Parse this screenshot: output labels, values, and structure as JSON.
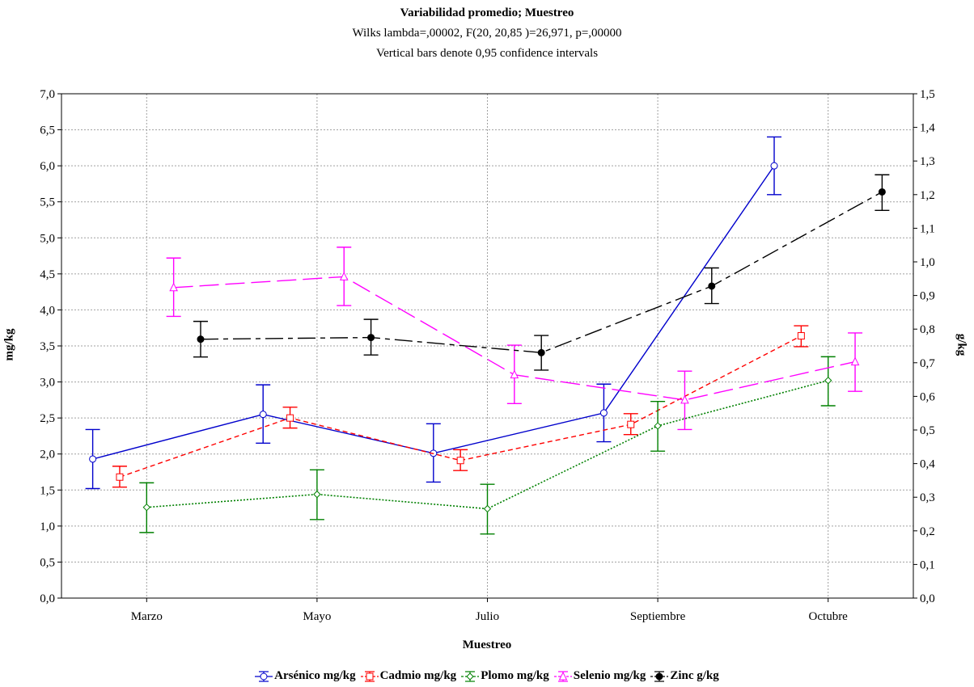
{
  "chart_data": {
    "type": "line",
    "title": "Variabilidad promedio; Muestreo",
    "subtitle": "Wilks lambda=,00002, F(20, 20,85 )=26,971, p=,00000",
    "note": "Vertical bars denote 0,95 confidence intervals",
    "xlabel": "Muestreo",
    "ylabel": "mg/kg",
    "y2label": "g/kg",
    "categories": [
      "Marzo",
      "Mayo",
      "Julio",
      "Septiembre",
      "Octubre"
    ],
    "ylim": [
      0,
      7
    ],
    "y_ticks": [
      "0,0",
      "0,5",
      "1,0",
      "1,5",
      "2,0",
      "2,5",
      "3,0",
      "3,5",
      "4,0",
      "4,5",
      "5,0",
      "5,5",
      "6,0",
      "6,5",
      "7,0"
    ],
    "y2lim": [
      0,
      1.5
    ],
    "y2_ticks": [
      "0,0",
      "0,1",
      "0,2",
      "0,3",
      "0,4",
      "0,5",
      "0,6",
      "0,7",
      "0,8",
      "0,9",
      "1,0",
      "1,1",
      "1,2",
      "1,3",
      "1,4",
      "1,5"
    ],
    "grid": true,
    "legend_position": "bottom",
    "series": [
      {
        "name": "Arsénico mg/kg",
        "axis": "left",
        "color": "#0000cc",
        "marker": "circle-open",
        "line": "solid",
        "values": [
          1.93,
          2.55,
          2.01,
          2.57,
          6.0
        ],
        "ci_low": [
          1.52,
          2.15,
          1.61,
          2.17,
          5.6
        ],
        "ci_high": [
          2.34,
          2.96,
          2.42,
          2.97,
          6.4
        ]
      },
      {
        "name": "Cadmio mg/kg",
        "axis": "left",
        "color": "#ff0000",
        "marker": "square-open",
        "line": "dashed",
        "values": [
          1.68,
          2.5,
          1.91,
          2.41,
          3.64
        ],
        "ci_low": [
          1.54,
          2.36,
          1.77,
          2.27,
          3.49
        ],
        "ci_high": [
          1.83,
          2.65,
          2.06,
          2.56,
          3.78
        ]
      },
      {
        "name": "Plomo mg/kg",
        "axis": "left",
        "color": "#008000",
        "marker": "diamond-open",
        "line": "dotted",
        "values": [
          1.26,
          1.44,
          1.24,
          2.39,
          3.02
        ],
        "ci_low": [
          0.91,
          1.09,
          0.89,
          2.04,
          2.67
        ],
        "ci_high": [
          1.6,
          1.78,
          1.58,
          2.73,
          3.35
        ]
      },
      {
        "name": "Selenio mg/kg",
        "axis": "left",
        "color": "#ff00ff",
        "marker": "triangle-open",
        "line": "longdash",
        "values": [
          4.31,
          4.46,
          3.1,
          2.75,
          3.28
        ],
        "ci_low": [
          3.91,
          4.06,
          2.7,
          2.34,
          2.87
        ],
        "ci_high": [
          4.72,
          4.87,
          3.51,
          3.15,
          3.68
        ]
      },
      {
        "name": "Zinc g/kg",
        "axis": "right",
        "color": "#000000",
        "marker": "circle-filled",
        "line": "dashdot",
        "values": [
          0.77,
          0.775,
          0.73,
          0.928,
          1.208
        ],
        "ci_low": [
          0.717,
          0.723,
          0.678,
          0.876,
          1.153
        ],
        "ci_high": [
          0.823,
          0.829,
          0.781,
          0.982,
          1.259
        ]
      }
    ]
  }
}
